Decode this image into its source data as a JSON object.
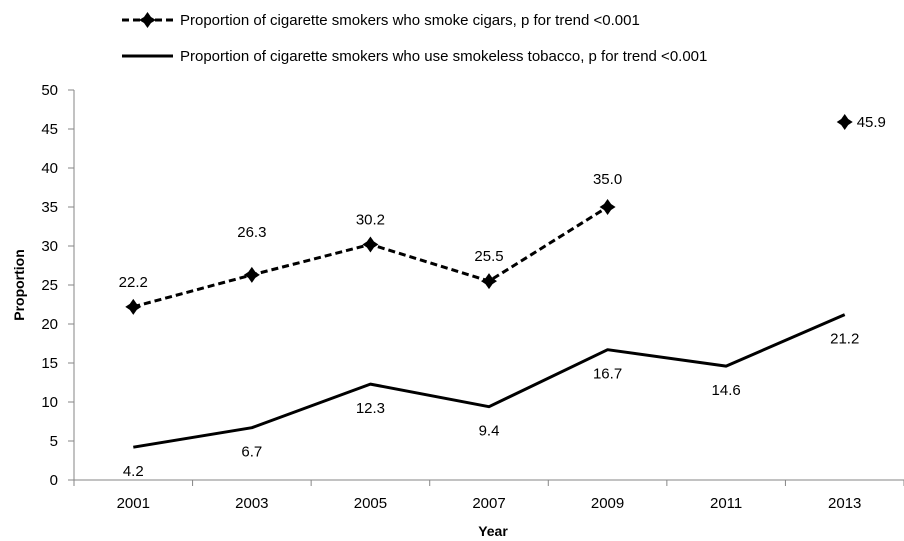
{
  "chart_data": {
    "type": "line",
    "categories": [
      "2001",
      "2003",
      "2005",
      "2007",
      "2009",
      "2011",
      "2013"
    ],
    "series": [
      {
        "name": "Proportion of cigarette smokers who smoke cigars, p for trend <0.001",
        "style": "dashed-with-diamond-markers",
        "values": [
          22.2,
          26.3,
          30.2,
          25.5,
          35.0,
          null,
          45.9
        ],
        "labels": [
          "22.2",
          "26.3",
          "30.2",
          "25.5",
          "35.0",
          null,
          "45.9"
        ]
      },
      {
        "name": "Proportion of cigarette smokers who use smokeless tobacco, p for trend <0.001",
        "style": "solid",
        "values": [
          4.2,
          6.7,
          12.3,
          9.4,
          16.7,
          14.6,
          21.2
        ],
        "labels": [
          "4.2",
          "6.7",
          "12.3",
          "9.4",
          "16.7",
          "14.6",
          "21.2"
        ]
      }
    ],
    "xlabel": "Year",
    "ylabel": "Proportion",
    "ylim": [
      0,
      50
    ],
    "yticks": [
      "0",
      "5",
      "10",
      "15",
      "20",
      "25",
      "30",
      "35",
      "40",
      "45",
      "50"
    ],
    "grid": false,
    "legend_position": "top",
    "colors": {
      "line": "#000000",
      "axis": "#868686"
    }
  }
}
